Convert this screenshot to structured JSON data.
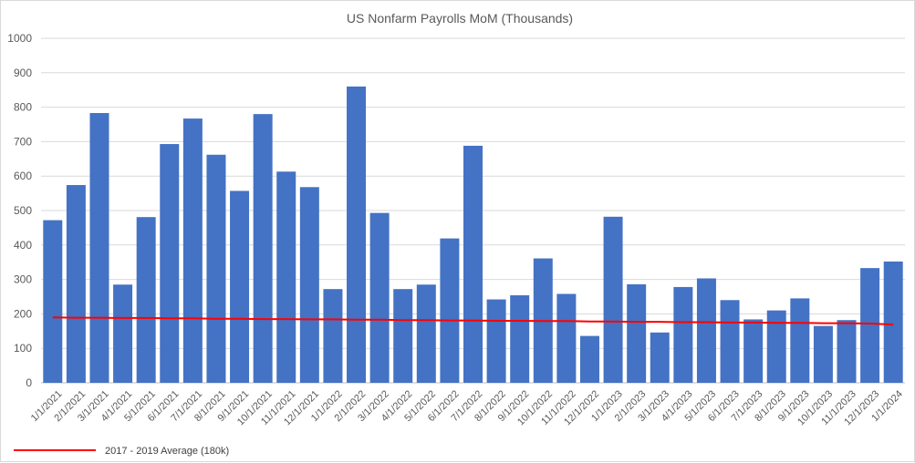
{
  "chart_data": {
    "type": "bar",
    "title": "US Nonfarm Payrolls MoM (Thousands)",
    "xlabel": "",
    "ylabel": "",
    "ylim": [
      0,
      1000
    ],
    "yticks": [
      0,
      100,
      200,
      300,
      400,
      500,
      600,
      700,
      800,
      900,
      1000
    ],
    "grid": true,
    "legend_position": "bottom-left",
    "categories": [
      "1/1/2021",
      "2/1/2021",
      "3/1/2021",
      "4/1/2021",
      "5/1/2021",
      "6/1/2021",
      "7/1/2021",
      "8/1/2021",
      "9/1/2021",
      "10/1/2021",
      "11/1/2021",
      "12/1/2021",
      "1/1/2022",
      "2/1/2022",
      "3/1/2022",
      "4/1/2022",
      "5/1/2022",
      "6/1/2022",
      "7/1/2022",
      "8/1/2022",
      "9/1/2022",
      "10/1/2022",
      "11/1/2022",
      "12/1/2022",
      "1/1/2023",
      "2/1/2023",
      "3/1/2023",
      "4/1/2023",
      "5/1/2023",
      "6/1/2023",
      "7/1/2023",
      "8/1/2023",
      "9/1/2023",
      "10/1/2023",
      "11/1/2023",
      "12/1/2023",
      "1/1/2024"
    ],
    "series": [
      {
        "type": "bar",
        "color": "#4472c4",
        "values": [
          472,
          574,
          783,
          285,
          481,
          693,
          767,
          662,
          557,
          780,
          613,
          568,
          272,
          860,
          493,
          272,
          285,
          419,
          688,
          242,
          254,
          361,
          258,
          136,
          482,
          286,
          146,
          278,
          303,
          240,
          184,
          210,
          245,
          165,
          182,
          333,
          352
        ]
      },
      {
        "name": "2017 - 2019 Average (180k)",
        "type": "line",
        "color": "#ff0000",
        "values": [
          190,
          189,
          189,
          188,
          188,
          187,
          187,
          186,
          186,
          185,
          185,
          184,
          184,
          183,
          183,
          182,
          182,
          181,
          181,
          180,
          180,
          179,
          179,
          178,
          178,
          177,
          177,
          176,
          176,
          175,
          175,
          174,
          174,
          173,
          173,
          172,
          169
        ]
      }
    ]
  }
}
